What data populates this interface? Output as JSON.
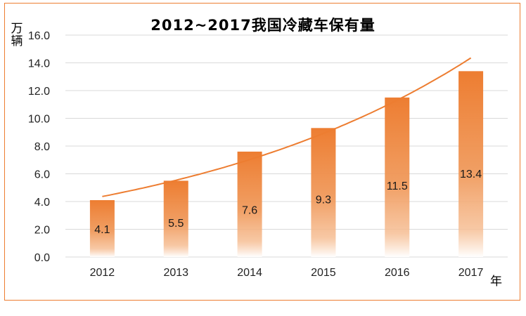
{
  "chart_data": {
    "type": "bar",
    "title": "2012~2017我国冷藏车保有量",
    "ylabel": "万辆",
    "xlabel": "年",
    "categories": [
      "2012",
      "2013",
      "2014",
      "2015",
      "2016",
      "2017"
    ],
    "values": [
      4.1,
      5.5,
      7.6,
      9.3,
      11.5,
      13.4
    ],
    "data_labels": [
      "4.1",
      "5.5",
      "7.6",
      "9.3",
      "11.5",
      "13.4"
    ],
    "ylim": [
      0,
      16
    ],
    "yticks": [
      "0.0",
      "2.0",
      "4.0",
      "6.0",
      "8.0",
      "10.0",
      "12.0",
      "14.0",
      "16.0"
    ],
    "grid": true,
    "trendline": "exponential",
    "colors": {
      "bar": "#ED7D31",
      "trendline": "#ED7D31",
      "frame": "#ED7D31",
      "grid": "#D9D9D9"
    }
  }
}
